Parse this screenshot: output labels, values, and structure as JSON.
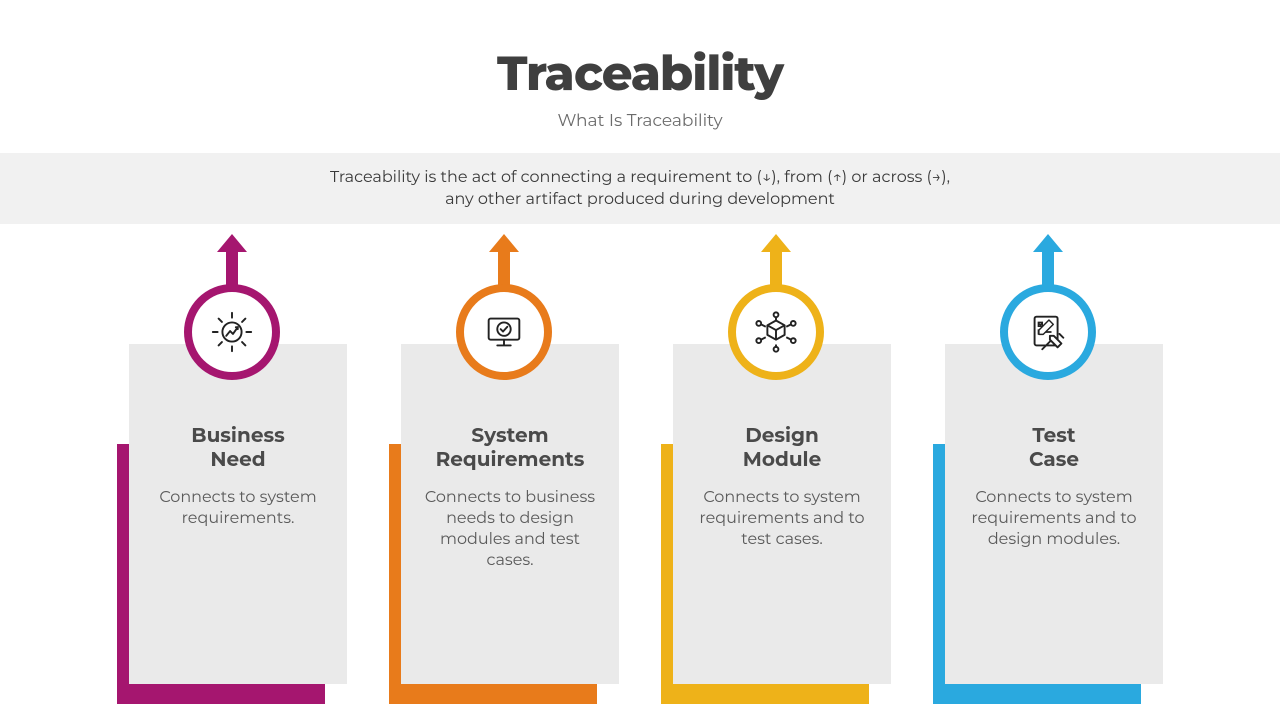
{
  "header": {
    "title": "Traceability",
    "subtitle": "What Is Traceability"
  },
  "banner": {
    "text": "Traceability is the act of connecting a requirement to (↓), from (↑) or across (→), any other artifact produced during development"
  },
  "cards": [
    {
      "color": "#a5166f",
      "icon": "gear-chart",
      "title": "Business\nNeed",
      "body": "Connects to system requirements."
    },
    {
      "color": "#e87b1b",
      "icon": "monitor-verify",
      "title": "System\nRequirements",
      "body": "Connects to business needs to design modules and test cases."
    },
    {
      "color": "#eeb219",
      "icon": "cube-network",
      "title": "Design\nModule",
      "body": "Connects to system requirements and to test cases."
    },
    {
      "color": "#2aa9df",
      "icon": "checklist-code",
      "title": "Test\nCase",
      "body": "Connects to system requirements and to design modules."
    }
  ],
  "style": {
    "card_bg": "#eaeaea",
    "banner_bg": "#f1f1f1",
    "title_color": "#3f3f3f",
    "text_color": "#3a3a3a",
    "card_title_color": "#4a4a4a",
    "card_body_color": "#5a5a5a",
    "title_fontsize": 48,
    "subtitle_fontsize": 17,
    "banner_fontsize": 16,
    "card_title_fontsize": 20,
    "card_body_fontsize": 16,
    "circle_border_width": 8
  }
}
